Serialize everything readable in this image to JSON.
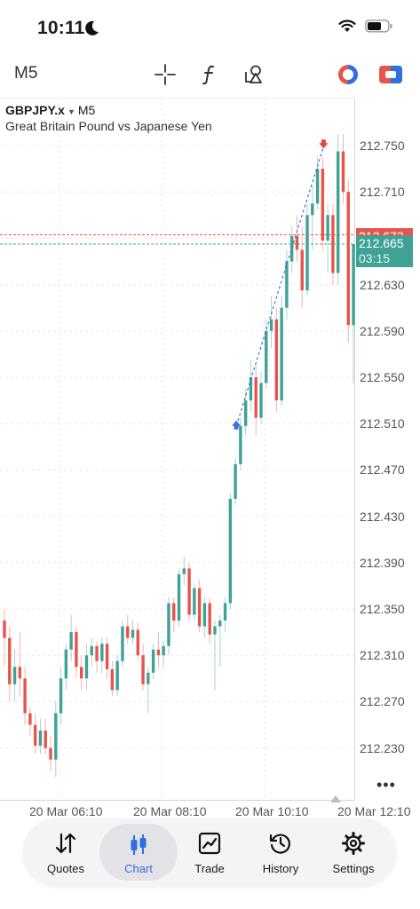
{
  "status_bar": {
    "time": "10:11"
  },
  "toolbar": {
    "timeframe": "M5"
  },
  "chart": {
    "symbol": "GBPJPY.x",
    "timeframe": "M5",
    "description": "Great Britain Pound vs Japanese Yen",
    "ask_price": "212.673",
    "bid_price": "212.665",
    "bid_countdown": "03:15",
    "y_ticks": [
      "212.750",
      "212.710",
      "212.670",
      "212.630",
      "212.590",
      "212.550",
      "212.510",
      "212.470",
      "212.430",
      "212.390",
      "212.350",
      "212.310",
      "212.270",
      "212.230"
    ],
    "x_ticks": [
      "20 Mar 06:10",
      "20 Mar 08:10",
      "20 Mar 10:10",
      "20 Mar 12:10"
    ],
    "bull_color": "#3fa295",
    "bear_color": "#e6554c"
  },
  "chart_data": {
    "type": "candlestick",
    "symbol": "GBPJPY.x",
    "timeframe": "M5",
    "ylim": [
      212.2,
      212.78
    ],
    "x_ticks": [
      "20 Mar 06:10",
      "20 Mar 08:10",
      "20 Mar 10:10",
      "20 Mar 12:10"
    ],
    "ask_line": 212.673,
    "bid_line": 212.665,
    "trade_markers": [
      {
        "side": "buy",
        "price": 212.508
      },
      {
        "side": "sell",
        "price": 212.749
      }
    ],
    "candles": [
      [
        212.34,
        212.35,
        212.3,
        212.325
      ],
      [
        212.325,
        212.335,
        212.27,
        212.285
      ],
      [
        212.285,
        212.315,
        212.27,
        212.3
      ],
      [
        212.3,
        212.33,
        212.275,
        212.29
      ],
      [
        212.29,
        212.3,
        212.25,
        212.26
      ],
      [
        212.26,
        212.265,
        212.24,
        212.25
      ],
      [
        212.25,
        212.26,
        212.225,
        212.232
      ],
      [
        212.232,
        212.255,
        212.225,
        212.245
      ],
      [
        212.245,
        212.255,
        212.225,
        212.23
      ],
      [
        212.23,
        212.24,
        212.21,
        212.22
      ],
      [
        212.22,
        212.27,
        212.205,
        212.26
      ],
      [
        212.26,
        212.3,
        212.25,
        212.29
      ],
      [
        212.29,
        212.32,
        212.28,
        212.315
      ],
      [
        212.315,
        212.345,
        212.305,
        212.33
      ],
      [
        212.33,
        212.335,
        212.29,
        212.3
      ],
      [
        212.3,
        212.31,
        212.28,
        212.29
      ],
      [
        212.29,
        212.32,
        212.28,
        212.31
      ],
      [
        212.31,
        212.325,
        212.3,
        212.318
      ],
      [
        212.318,
        212.322,
        212.295,
        212.305
      ],
      [
        212.305,
        212.325,
        212.295,
        212.32
      ],
      [
        212.32,
        212.325,
        212.29,
        212.298
      ],
      [
        212.298,
        212.305,
        212.275,
        212.28
      ],
      [
        212.28,
        212.31,
        212.275,
        212.305
      ],
      [
        212.305,
        212.34,
        212.3,
        212.335
      ],
      [
        212.335,
        212.345,
        212.32,
        212.325
      ],
      [
        212.325,
        212.34,
        212.32,
        212.332
      ],
      [
        212.332,
        212.338,
        212.305,
        212.31
      ],
      [
        212.31,
        212.32,
        212.28,
        212.285
      ],
      [
        212.285,
        212.3,
        212.26,
        212.295
      ],
      [
        212.295,
        212.32,
        212.29,
        212.315
      ],
      [
        212.315,
        212.33,
        212.3,
        212.31
      ],
      [
        212.31,
        212.322,
        212.3,
        212.318
      ],
      [
        212.318,
        212.36,
        212.31,
        212.355
      ],
      [
        212.355,
        212.36,
        212.33,
        212.34
      ],
      [
        212.34,
        212.385,
        212.335,
        212.38
      ],
      [
        212.38,
        212.395,
        212.37,
        212.385
      ],
      [
        212.385,
        212.39,
        212.34,
        212.345
      ],
      [
        212.345,
        212.372,
        212.34,
        212.368
      ],
      [
        212.368,
        212.375,
        212.33,
        212.335
      ],
      [
        212.335,
        212.36,
        212.325,
        212.355
      ],
      [
        212.355,
        212.36,
        212.32,
        212.328
      ],
      [
        212.328,
        212.34,
        212.28,
        212.335
      ],
      [
        212.335,
        212.345,
        212.3,
        212.34
      ],
      [
        212.34,
        212.36,
        212.33,
        212.355
      ],
      [
        212.355,
        212.45,
        212.35,
        212.445
      ],
      [
        212.445,
        212.48,
        212.44,
        212.475
      ],
      [
        212.475,
        212.515,
        212.47,
        212.508
      ],
      [
        212.508,
        212.54,
        212.5,
        212.53
      ],
      [
        212.53,
        212.565,
        212.52,
        212.55
      ],
      [
        212.55,
        212.56,
        212.5,
        212.515
      ],
      [
        212.515,
        212.555,
        212.51,
        212.545
      ],
      [
        212.545,
        212.6,
        212.54,
        212.59
      ],
      [
        212.59,
        212.62,
        212.575,
        212.6
      ],
      [
        212.6,
        212.61,
        212.52,
        212.53
      ],
      [
        212.53,
        212.62,
        212.525,
        212.61
      ],
      [
        212.61,
        212.66,
        212.6,
        212.65
      ],
      [
        212.65,
        212.68,
        212.64,
        212.672
      ],
      [
        212.672,
        212.69,
        212.65,
        212.66
      ],
      [
        212.66,
        212.68,
        212.61,
        212.625
      ],
      [
        212.625,
        212.7,
        212.62,
        212.69
      ],
      [
        212.69,
        212.715,
        212.66,
        212.7
      ],
      [
        212.7,
        212.74,
        212.695,
        212.73
      ],
      [
        212.73,
        212.74,
        212.66,
        212.668
      ],
      [
        212.668,
        212.7,
        212.64,
        212.69
      ],
      [
        212.69,
        212.7,
        212.63,
        212.64
      ],
      [
        212.64,
        212.76,
        212.63,
        212.745
      ],
      [
        212.745,
        212.76,
        212.7,
        212.71
      ],
      [
        212.71,
        212.72,
        212.58,
        212.595
      ],
      [
        212.595,
        212.66,
        212.545,
        212.665
      ]
    ]
  },
  "tabs": [
    {
      "label": "Quotes",
      "icon": "quotes-arrows-icon"
    },
    {
      "label": "Chart",
      "icon": "candlestick-icon"
    },
    {
      "label": "Trade",
      "icon": "trade-chart-icon"
    },
    {
      "label": "History",
      "icon": "history-clock-icon"
    },
    {
      "label": "Settings",
      "icon": "settings-gear-icon"
    }
  ],
  "colors": {
    "accent": "#2f6fe0",
    "bull": "#3fa295",
    "bear": "#e6554c",
    "buy_marker": "#3b6fdc",
    "sell_marker": "#d94a3d"
  }
}
